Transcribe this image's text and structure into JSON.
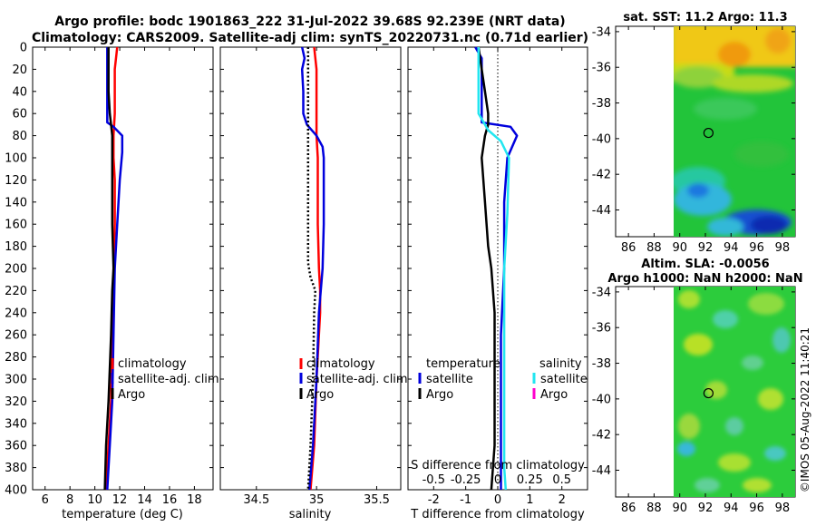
{
  "title_line1": "Argo profile: bodc 1901863_222 31-Jul-2022 39.68S 92.239E (NRT data)",
  "title_line2": "Climatology: CARS2009. Satellite-adj clim: synTS_20220731.nc (0.71d earlier)",
  "side_label": "©IMOS 05-Aug-2022 11:40:21",
  "colors": {
    "climatology": "#ff0000",
    "satellite": "#0000dd",
    "argo": "#000000",
    "sat_diff_t": "#22e6f0",
    "sat_diff_s": "#22e6f0",
    "argo_diff_s": "#ff00cc"
  },
  "legend1": {
    "items": [
      "climatology",
      "satellite-adj. clim",
      "Argo"
    ]
  },
  "legend2": {
    "items": [
      "climatology",
      "satellite-adj. clim",
      "Argo"
    ]
  },
  "legend3": {
    "col1_title": "temperature",
    "col1_items": [
      "satellite",
      "Argo"
    ],
    "col2_title": "salinity",
    "col2_items": [
      "satellite",
      "Argo"
    ]
  },
  "map1": {
    "title": "sat. SST: 11.2 Argo: 11.3",
    "xlim": [
      85,
      99
    ],
    "ylim": [
      -45.5,
      -33.7
    ],
    "xticks": [
      "86",
      "88",
      "90",
      "92",
      "94",
      "96",
      "98"
    ],
    "yticks": [
      "-34",
      "-36",
      "-38",
      "-40",
      "-42",
      "-44"
    ],
    "marker": [
      92.24,
      -39.68
    ]
  },
  "map2": {
    "title_line1": "Altim. SLA: -0.0056",
    "title_line2": "Argo h1000: NaN h2000: NaN",
    "xlim": [
      85,
      99
    ],
    "ylim": [
      -45.5,
      -33.7
    ],
    "xticks": [
      "86",
      "88",
      "90",
      "92",
      "94",
      "96",
      "98"
    ],
    "yticks": [
      "-34",
      "-36",
      "-38",
      "-40",
      "-42",
      "-44"
    ],
    "marker": [
      92.24,
      -39.68
    ]
  },
  "chart_data": [
    {
      "type": "line",
      "xlabel": "temperature (deg C)",
      "xlim": [
        5,
        19.5
      ],
      "ylim": [
        0,
        400
      ],
      "y_reversed": true,
      "xticks": [
        6,
        8,
        10,
        12,
        14,
        16,
        18
      ],
      "yticks": [
        0,
        20,
        40,
        60,
        80,
        100,
        120,
        140,
        160,
        180,
        200,
        220,
        240,
        260,
        280,
        300,
        320,
        340,
        360,
        380,
        400
      ],
      "legend_position": "lower-left",
      "series": [
        {
          "name": "climatology",
          "color": "#ff0000",
          "width": 2.5,
          "x": [
            11.8,
            11.6,
            11.6,
            11.6,
            11.5,
            11.5,
            11.6,
            11.6,
            11.5,
            11.5,
            11.4,
            11.3,
            11.1,
            10.9
          ],
          "y": [
            0,
            20,
            40,
            60,
            80,
            100,
            120,
            160,
            200,
            220,
            260,
            320,
            360,
            400
          ]
        },
        {
          "name": "satellite-adj. clim",
          "color": "#0000dd",
          "width": 2.5,
          "x": [
            11.0,
            11.0,
            11.0,
            11.0,
            11.5,
            12.2,
            12.2,
            12.0,
            11.8,
            11.6,
            11.5,
            11.4,
            11.2,
            11.0
          ],
          "y": [
            0,
            20,
            40,
            68,
            72,
            80,
            95,
            120,
            160,
            200,
            260,
            320,
            360,
            400
          ]
        },
        {
          "name": "Argo",
          "color": "#000000",
          "width": 2.5,
          "x": [
            11.1,
            11.1,
            11.1,
            11.2,
            11.3,
            11.4,
            11.4,
            11.4,
            11.5,
            11.4,
            11.3,
            11.1,
            10.9,
            10.8
          ],
          "y": [
            0,
            20,
            40,
            60,
            70,
            80,
            100,
            160,
            200,
            220,
            260,
            320,
            360,
            400
          ]
        }
      ]
    },
    {
      "type": "line",
      "xlabel": "salinity",
      "xlim": [
        34.2,
        35.7
      ],
      "ylim": [
        0,
        400
      ],
      "y_reversed": true,
      "xticks": [
        34.5,
        35,
        35.5
      ],
      "xticklabels": [
        "34.5",
        "35",
        "35.5"
      ],
      "legend_position": "lower-left",
      "series": [
        {
          "name": "climatology",
          "color": "#ff0000",
          "width": 2.5,
          "x": [
            34.98,
            35.0,
            35.0,
            35.0,
            35.01,
            35.01,
            35.01,
            35.02,
            35.03,
            35.03,
            35.0,
            34.98,
            34.95
          ],
          "y": [
            0,
            20,
            60,
            80,
            100,
            120,
            160,
            200,
            220,
            240,
            300,
            360,
            400
          ]
        },
        {
          "name": "satellite-adj. clim",
          "color": "#0000dd",
          "width": 2.5,
          "x": [
            34.88,
            34.9,
            34.88,
            34.89,
            34.89,
            34.92,
            35.0,
            35.05,
            35.06,
            35.06,
            35.05,
            35.02,
            35.0,
            34.97,
            34.94
          ],
          "y": [
            0,
            10,
            20,
            40,
            60,
            70,
            80,
            90,
            100,
            160,
            200,
            240,
            300,
            360,
            400
          ]
        },
        {
          "name": "Argo",
          "color": "#000000",
          "width": 2.5,
          "dash": true,
          "x": [
            34.93,
            34.93,
            34.93,
            34.93,
            34.93,
            34.95,
            34.99,
            34.98,
            34.97,
            34.95,
            34.93
          ],
          "y": [
            0,
            20,
            60,
            120,
            195,
            208,
            220,
            240,
            300,
            360,
            400
          ]
        }
      ]
    },
    {
      "type": "line",
      "xlabel": "T difference from climatology",
      "xlim": [
        -2.8,
        2.8
      ],
      "ylim": [
        0,
        400
      ],
      "y_reversed": true,
      "xticks": [
        -2,
        -1,
        0,
        1,
        2
      ],
      "secondary_xlabel": "S difference from climatology",
      "secondary_xticklabels": [
        "-0.5",
        "-0.25",
        "0",
        "0.25",
        "0.5"
      ],
      "zero_line": true,
      "legend_position": "lower",
      "series": [
        {
          "name": "temperature satellite",
          "color": "#0000dd",
          "width": 2.5,
          "x": [
            -0.7,
            -0.5,
            -0.5,
            -0.5,
            0.4,
            0.6,
            0.3,
            0.2,
            0.2,
            0.1,
            0.1,
            0.1,
            0.1
          ],
          "y": [
            0,
            10,
            20,
            68,
            72,
            80,
            100,
            140,
            200,
            260,
            320,
            360,
            400
          ]
        },
        {
          "name": "temperature Argo",
          "color": "#000000",
          "width": 2.5,
          "x": [
            -0.6,
            -0.5,
            -0.4,
            -0.3,
            -0.3,
            -0.4,
            -0.5,
            -0.4,
            -0.3,
            -0.2,
            -0.1,
            -0.1,
            -0.1,
            -0.1,
            -0.2
          ],
          "y": [
            0,
            20,
            40,
            60,
            70,
            80,
            100,
            140,
            180,
            200,
            240,
            280,
            320,
            360,
            400
          ]
        },
        {
          "name": "salinity satellite",
          "color": "#22e6f0",
          "width": 2.5,
          "x": [
            -0.6,
            -0.6,
            -0.6,
            -0.6,
            -0.3,
            0.1,
            0.35,
            0.3,
            0.2,
            0.2,
            0.2,
            0.2,
            0.2,
            0.25
          ],
          "y": [
            0,
            15,
            30,
            60,
            75,
            85,
            100,
            150,
            200,
            260,
            320,
            360,
            380,
            400
          ]
        }
      ]
    }
  ]
}
